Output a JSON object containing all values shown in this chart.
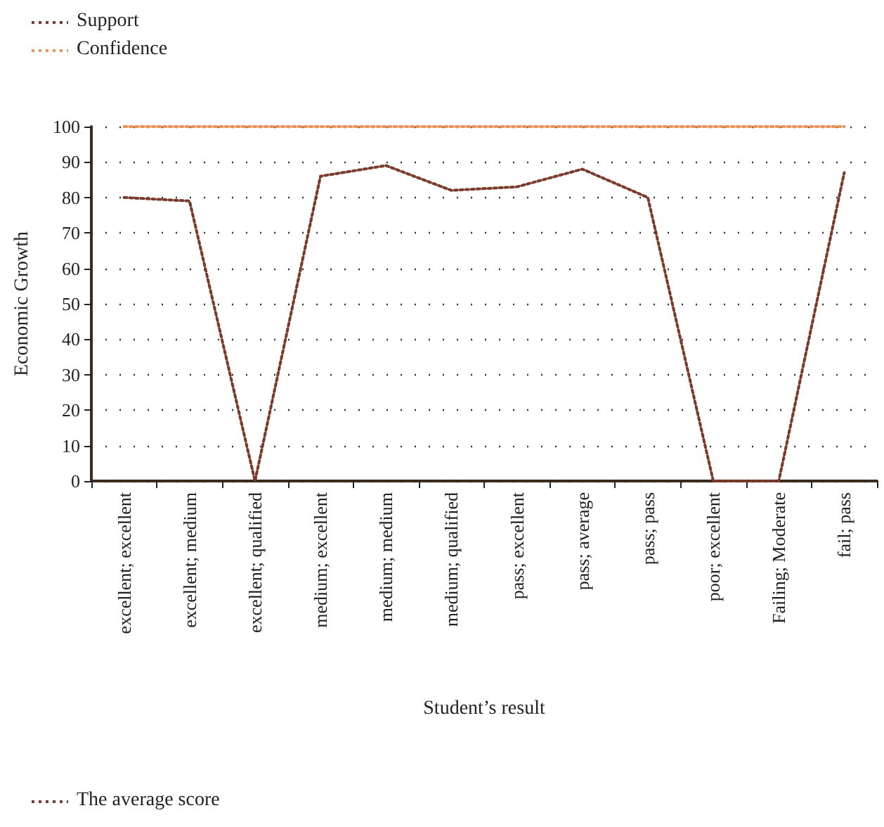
{
  "chart_data": {
    "type": "line",
    "xlabel": "Student’s result",
    "ylabel": "Economic Growth",
    "categories": [
      "excellent; excellent",
      "excellent; medium",
      "excellent; qualified",
      "medium; excellent",
      "medium; medium",
      "medium; qualified",
      "pass; excellent",
      "pass; average",
      "pass; pass",
      "poor; excellent",
      "Failing; Moderate",
      "fail; pass"
    ],
    "series": [
      {
        "name": "Support",
        "color": "#7b3a2a",
        "values": [
          80,
          79,
          0,
          86,
          89,
          82,
          83,
          88,
          80,
          0,
          0,
          87
        ]
      },
      {
        "name": "Confidence",
        "color": "#e8945a",
        "values": [
          100,
          100,
          100,
          100,
          100,
          100,
          100,
          100,
          100,
          100,
          100,
          100
        ]
      }
    ],
    "ylim": [
      0,
      100
    ],
    "yticks": [
      0,
      10,
      20,
      30,
      40,
      50,
      60,
      70,
      80,
      90,
      100
    ],
    "grid": "y",
    "legend": "top left",
    "line_style": "dotted",
    "marker": "none",
    "annotations": [
      "The average score"
    ]
  }
}
